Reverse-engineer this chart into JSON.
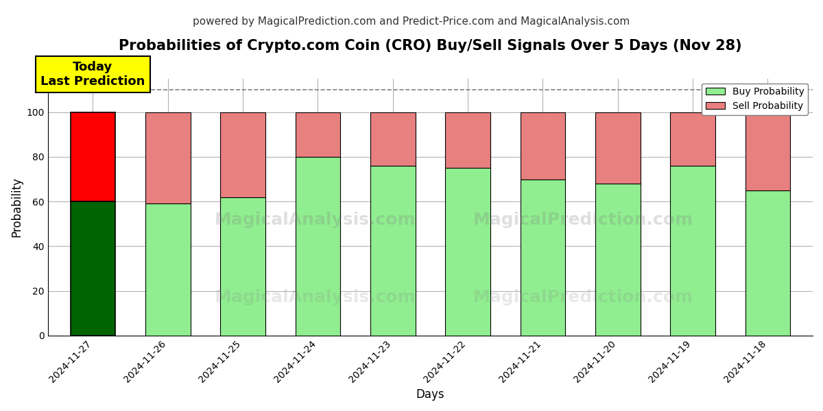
{
  "title": "Probabilities of Crypto.com Coin (CRO) Buy/Sell Signals Over 5 Days (Nov 28)",
  "subtitle": "powered by MagicalPrediction.com and Predict-Price.com and MagicalAnalysis.com",
  "xlabel": "Days",
  "ylabel": "Probability",
  "watermark_lines": [
    "MagicalAnalysis.com",
    "MagicalPrediction.com"
  ],
  "categories": [
    "2024-11-27",
    "2024-11-26",
    "2024-11-25",
    "2024-11-24",
    "2024-11-23",
    "2024-11-22",
    "2024-11-21",
    "2024-11-20",
    "2024-11-19",
    "2024-11-18"
  ],
  "buy_values": [
    60,
    59,
    62,
    80,
    76,
    75,
    70,
    68,
    76,
    65
  ],
  "sell_values": [
    40,
    41,
    38,
    20,
    24,
    25,
    30,
    32,
    24,
    35
  ],
  "today_bar_buy_color": "#006400",
  "today_bar_sell_color": "#FF0000",
  "normal_bar_buy_color": "#90EE90",
  "normal_bar_sell_color": "#E88080",
  "today_annotation_bg": "#FFFF00",
  "today_annotation_text": "Today\nLast Prediction",
  "ylim": [
    0,
    115
  ],
  "dashed_line_y": 110,
  "legend_buy_label": "Buy Probability",
  "legend_sell_label": "Sell Probability",
  "figsize": [
    12,
    6
  ],
  "dpi": 100,
  "background_color": "#FFFFFF",
  "grid_color": "#AAAAAA",
  "title_fontsize": 15,
  "subtitle_fontsize": 11,
  "axis_label_fontsize": 12
}
